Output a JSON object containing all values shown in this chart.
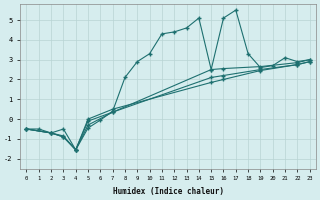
{
  "xlabel": "Humidex (Indice chaleur)",
  "background_color": "#d6edee",
  "grid_color": "#b8d4d4",
  "line_color": "#1e7070",
  "marker_color": "#1e7070",
  "xlim": [
    -0.5,
    23.5
  ],
  "ylim": [
    -2.5,
    5.8
  ],
  "yticks": [
    -2,
    -1,
    0,
    1,
    2,
    3,
    4,
    5
  ],
  "xticks": [
    0,
    1,
    2,
    3,
    4,
    5,
    6,
    7,
    8,
    9,
    10,
    11,
    12,
    13,
    14,
    15,
    16,
    17,
    18,
    19,
    20,
    21,
    22,
    23
  ],
  "series1_x": [
    0,
    1,
    2,
    3,
    4,
    5,
    6,
    7,
    8,
    9,
    10,
    11,
    12,
    13,
    14,
    15,
    16,
    17,
    18,
    19,
    20,
    21,
    22,
    23
  ],
  "series1_y": [
    -0.5,
    -0.5,
    -0.7,
    -0.85,
    -1.55,
    -0.45,
    -0.05,
    0.4,
    2.1,
    2.9,
    3.3,
    4.3,
    4.4,
    4.6,
    5.1,
    2.5,
    5.1,
    5.5,
    3.3,
    2.6,
    2.7,
    3.1,
    2.9,
    3.0
  ],
  "series2_x": [
    0,
    2,
    3,
    4,
    5,
    7,
    15,
    16,
    19,
    22,
    23
  ],
  "series2_y": [
    -0.5,
    -0.7,
    -0.5,
    -1.55,
    -0.1,
    0.35,
    2.5,
    2.55,
    2.65,
    2.85,
    3.0
  ],
  "series3_x": [
    0,
    2,
    3,
    4,
    5,
    7,
    15,
    16,
    19,
    22,
    23
  ],
  "series3_y": [
    -0.5,
    -0.7,
    -0.9,
    -1.55,
    -0.3,
    0.35,
    2.1,
    2.2,
    2.5,
    2.75,
    2.9
  ],
  "series4_x": [
    0,
    2,
    3,
    4,
    5,
    7,
    15,
    16,
    19,
    22,
    23
  ],
  "series4_y": [
    -0.5,
    -0.7,
    -0.9,
    -1.55,
    0.0,
    0.5,
    1.85,
    2.0,
    2.45,
    2.75,
    2.9
  ]
}
